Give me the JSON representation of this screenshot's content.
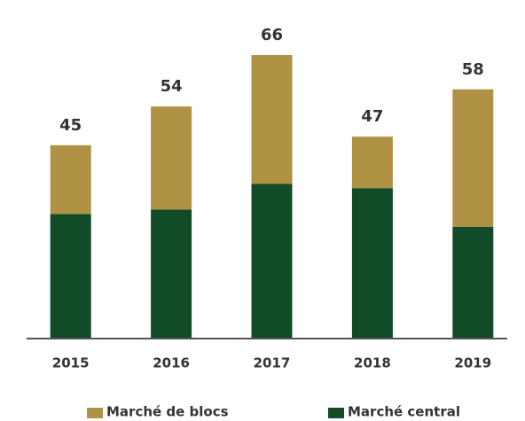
{
  "chart_data": {
    "type": "stacked_bar",
    "categories": [
      "2015",
      "2016",
      "2017",
      "2018",
      "2019"
    ],
    "series": [
      {
        "name": "Marché central",
        "color": "#114b28",
        "values": [
          29,
          30,
          36,
          35,
          26
        ]
      },
      {
        "name": "Marché de blocs",
        "color": "#b09245",
        "values": [
          16,
          24,
          30,
          12,
          32
        ]
      }
    ],
    "totals": [
      45,
      54,
      66,
      47,
      58
    ],
    "legend": "bottom"
  }
}
